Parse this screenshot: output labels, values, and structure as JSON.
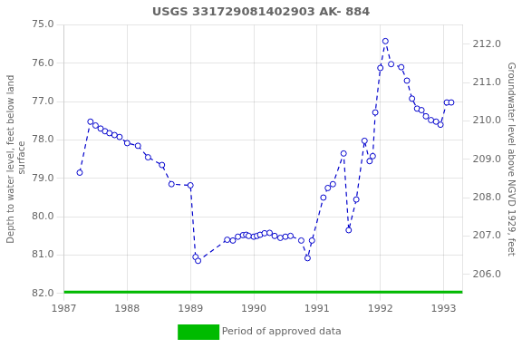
{
  "chart_data": {
    "type": "line",
    "title": "USGS 331729081402903 AK- 884",
    "y_label": "Depth to water level, feet below land\n surface",
    "y2_label": "Groundwater level above NGVD 1929, feet",
    "xlim": [
      1987.0,
      1993.3
    ],
    "xticks": [
      1987,
      1988,
      1989,
      1990,
      1991,
      1992,
      1993
    ],
    "ylim": [
      82.0,
      75.0
    ],
    "yticks": [
      {
        "value": 75.0,
        "label": "75.0"
      },
      {
        "value": 76.0,
        "label": "76.0"
      },
      {
        "value": 77.0,
        "label": "77.0"
      },
      {
        "value": 78.0,
        "label": "78.0"
      },
      {
        "value": 79.0,
        "label": "79.0"
      },
      {
        "value": 80.0,
        "label": "80.0"
      },
      {
        "value": 81.0,
        "label": "81.0"
      },
      {
        "value": 82.0,
        "label": "82.0"
      }
    ],
    "y2lim": [
      205.5,
      212.5
    ],
    "y2ticks": [
      {
        "value": 206.0,
        "label": "206.0"
      },
      {
        "value": 207.0,
        "label": "207.0"
      },
      {
        "value": 208.0,
        "label": "208.0"
      },
      {
        "value": 209.0,
        "label": "209.0"
      },
      {
        "value": 210.0,
        "label": "210.0"
      },
      {
        "value": 211.0,
        "label": "211.0"
      },
      {
        "value": 212.0,
        "label": "212.0"
      }
    ],
    "grid": true,
    "legend": "bottom",
    "x": [
      1987.25,
      1987.42,
      1987.5,
      1987.58,
      1987.65,
      1987.72,
      1987.8,
      1987.88,
      1988.0,
      1988.17,
      1988.33,
      1988.55,
      1988.7,
      1989.0,
      1989.08,
      1989.12,
      1989.58,
      1989.67,
      1989.75,
      1989.83,
      1989.88,
      1989.92,
      1990.0,
      1990.05,
      1990.1,
      1990.17,
      1990.25,
      1990.33,
      1990.42,
      1990.5,
      1990.58,
      1990.75,
      1990.85,
      1990.92,
      1991.1,
      1991.17,
      1991.25,
      1991.42,
      1991.5,
      1991.62,
      1991.75,
      1991.83,
      1991.88,
      1991.92,
      1992.0,
      1992.08,
      1992.17,
      1992.33,
      1992.42,
      1992.5,
      1992.58,
      1992.65,
      1992.72,
      1992.8,
      1992.88,
      1992.95,
      1993.05,
      1993.12
    ],
    "series": [
      {
        "color": "#0000cc",
        "line_style": "dashed",
        "marker": "circle",
        "values": [
          78.85,
          77.52,
          77.62,
          77.7,
          77.77,
          77.82,
          77.87,
          77.92,
          78.08,
          78.15,
          78.45,
          78.65,
          79.15,
          79.18,
          81.05,
          81.15,
          80.6,
          80.62,
          80.52,
          80.48,
          80.47,
          80.5,
          80.52,
          80.5,
          80.47,
          80.43,
          80.42,
          80.5,
          80.55,
          80.52,
          80.5,
          80.62,
          81.08,
          80.62,
          79.5,
          79.25,
          79.15,
          78.35,
          80.35,
          79.55,
          78.02,
          78.55,
          78.42,
          77.28,
          76.12,
          75.42,
          76.02,
          76.1,
          76.45,
          76.92,
          77.18,
          77.22,
          77.38,
          77.48,
          77.52,
          77.6,
          77.02,
          77.02
        ]
      },
      {
        "name": "Period of approved data",
        "color": "#00bb00",
        "line_style": "solid",
        "marker": "none",
        "x": [
          1987.0,
          1993.3
        ],
        "values": [
          82.0,
          82.0
        ]
      }
    ]
  }
}
